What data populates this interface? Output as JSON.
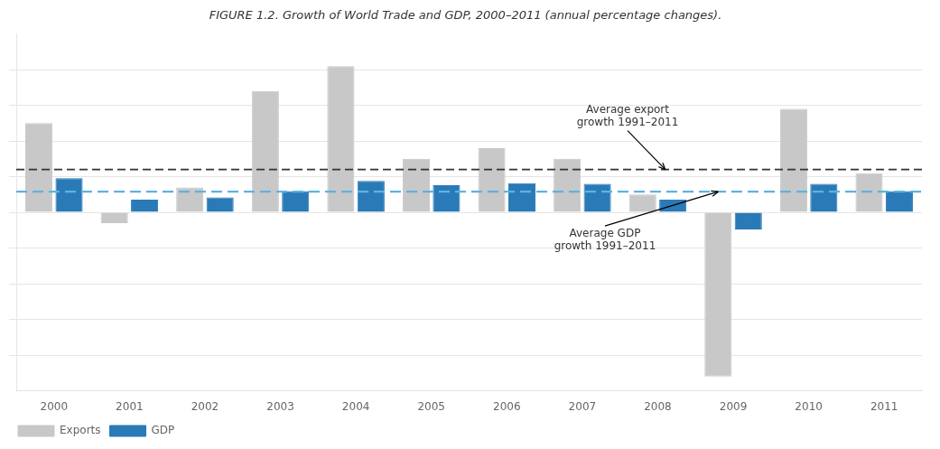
{
  "chart_data": {
    "type": "bar",
    "title": "FIGURE 1.2. Growth of World Trade and GDP, 2000–2011 (annual percentage changes).",
    "categories": [
      "2000",
      "2001",
      "2002",
      "2003",
      "2004",
      "2005",
      "2006",
      "2007",
      "2008",
      "2009",
      "2010",
      "2011"
    ],
    "series": [
      {
        "name": "Exports",
        "color": "#c8c8c8",
        "values": [
          12.5,
          -1.5,
          3.5,
          17.0,
          20.5,
          7.5,
          9.0,
          7.5,
          2.5,
          -23.0,
          14.5,
          5.5
        ]
      },
      {
        "name": "GDP",
        "color": "#2a7ab8",
        "values": [
          4.8,
          1.8,
          2.1,
          3.0,
          4.4,
          3.8,
          4.1,
          4.0,
          1.8,
          -2.4,
          4.0,
          3.0
        ]
      }
    ],
    "annotations": [
      {
        "text": "Average export\ngrowth 1991–2011",
        "y": 6.0,
        "color": "#333333",
        "line_style": "dashed"
      },
      {
        "text": "Average GDP\ngrowth 1991–2011",
        "y": 2.9,
        "color": "#5ab5e0",
        "line_style": "dashed"
      }
    ],
    "ylim": [
      -25,
      25
    ],
    "yticks": [
      -20,
      -15,
      -10,
      -5,
      0,
      5,
      10,
      15,
      20
    ],
    "grid": true,
    "tick_labels": "x",
    "legend": "lower left"
  }
}
